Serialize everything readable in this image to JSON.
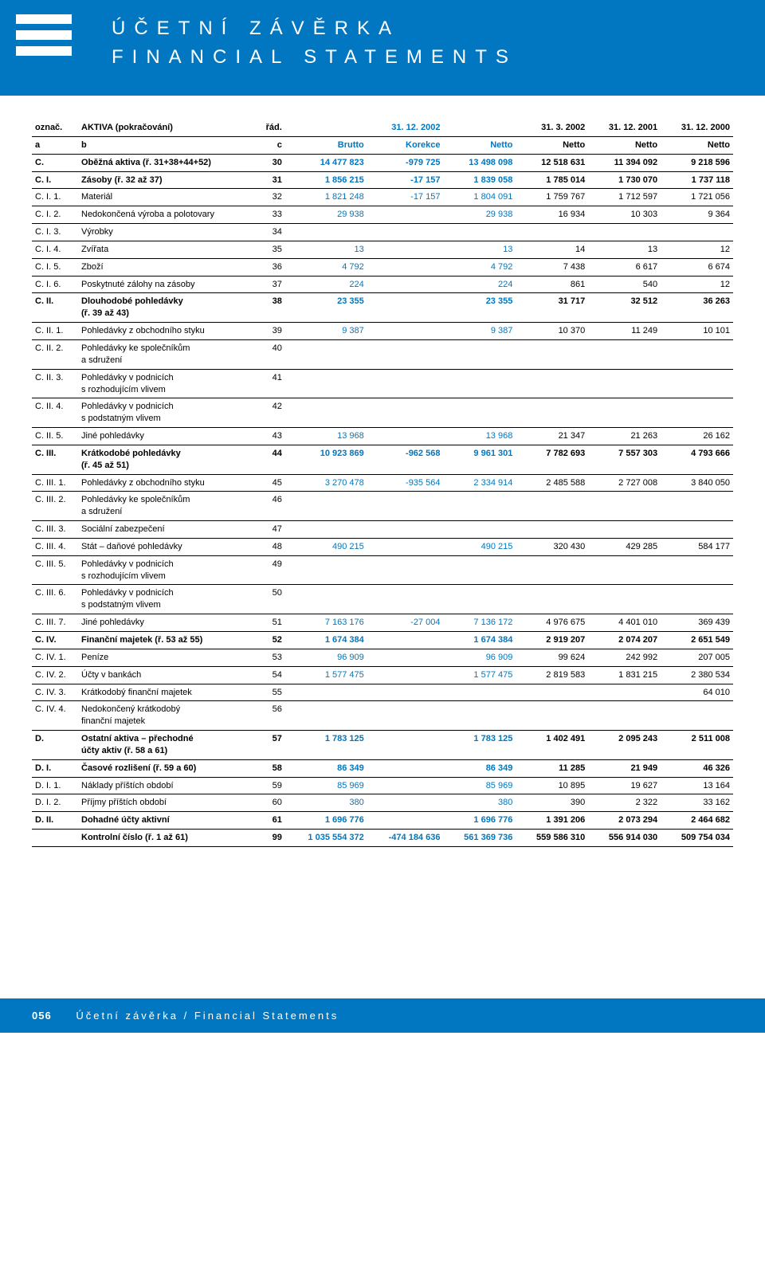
{
  "header": {
    "title1": "ÚČETNÍ ZÁVĚRKA",
    "title2": "FINANCIAL STATEMENTS"
  },
  "table": {
    "head1": [
      "označ.",
      "AKTIVA (pokračování)",
      "řád.",
      "",
      "31. 12. 2002",
      "",
      "31. 3. 2002",
      "31. 12. 2001",
      "31. 12. 2000"
    ],
    "head2": [
      "a",
      "b",
      "c",
      "Brutto",
      "Korekce",
      "Netto",
      "Netto",
      "Netto",
      "Netto"
    ],
    "rows": [
      {
        "bold": true,
        "a": "C.",
        "b": "Oběžná aktiva (ř. 31+38+44+52)",
        "c": "30",
        "v": [
          "14 477 823",
          "-979 725",
          "13 498 098",
          "12 518 631",
          "11 394 092",
          "9 218 596"
        ]
      },
      {
        "bold": true,
        "a": "C. I.",
        "b": "Zásoby (ř. 32 až 37)",
        "c": "31",
        "v": [
          "1 856 215",
          "-17 157",
          "1 839 058",
          "1 785 014",
          "1 730 070",
          "1 737 118"
        ]
      },
      {
        "a": "C. I.  1.",
        "b": "Materiál",
        "c": "32",
        "v": [
          "1 821 248",
          "-17 157",
          "1 804 091",
          "1 759 767",
          "1 712 597",
          "1 721 056"
        ]
      },
      {
        "a": "C. I.  2.",
        "b": "Nedokončená výroba a polotovary",
        "c": "33",
        "v": [
          "29 938",
          "",
          "29 938",
          "16 934",
          "10 303",
          "9 364"
        ]
      },
      {
        "a": "C. I.  3.",
        "b": "Výrobky",
        "c": "34",
        "v": [
          "",
          "",
          "",
          "",
          "",
          ""
        ]
      },
      {
        "a": "C. I.  4.",
        "b": "Zvířata",
        "c": "35",
        "v": [
          "13",
          "",
          "13",
          "14",
          "13",
          "12"
        ]
      },
      {
        "a": "C. I.  5.",
        "b": "Zboží",
        "c": "36",
        "v": [
          "4 792",
          "",
          "4 792",
          "7 438",
          "6 617",
          "6 674"
        ]
      },
      {
        "a": "C. I.  6.",
        "b": "Poskytnuté zálohy na zásoby",
        "c": "37",
        "v": [
          "224",
          "",
          "224",
          "861",
          "540",
          "12"
        ]
      },
      {
        "bold": true,
        "a": "C. II.",
        "b": "Dlouhodobé pohledávky\n(ř. 39 až 43)",
        "c": "38",
        "v": [
          "23 355",
          "",
          "23 355",
          "31 717",
          "32 512",
          "36 263"
        ]
      },
      {
        "a": "C. II. 1.",
        "b": "Pohledávky z obchodního styku",
        "c": "39",
        "v": [
          "9 387",
          "",
          "9 387",
          "10 370",
          "11 249",
          "10 101"
        ]
      },
      {
        "a": "C. II. 2.",
        "b": "Pohledávky ke společníkům\na sdružení",
        "c": "40",
        "v": [
          "",
          "",
          "",
          "",
          "",
          ""
        ]
      },
      {
        "a": "C. II. 3.",
        "b": "Pohledávky v podnicích\ns rozhodujícím vlivem",
        "c": "41",
        "v": [
          "",
          "",
          "",
          "",
          "",
          ""
        ]
      },
      {
        "a": "C. II. 4.",
        "b": "Pohledávky v podnicích\ns podstatným vlivem",
        "c": "42",
        "v": [
          "",
          "",
          "",
          "",
          "",
          ""
        ]
      },
      {
        "a": "C. II. 5.",
        "b": "Jiné pohledávky",
        "c": "43",
        "v": [
          "13 968",
          "",
          "13 968",
          "21 347",
          "21 263",
          "26 162"
        ]
      },
      {
        "bold": true,
        "a": "C. III.",
        "b": "Krátkodobé pohledávky\n(ř. 45 až 51)",
        "c": "44",
        "v": [
          "10 923 869",
          "-962 568",
          "9 961 301",
          "7 782 693",
          "7 557 303",
          "4 793 666"
        ]
      },
      {
        "a": "C. III. 1.",
        "b": "Pohledávky z obchodního styku",
        "c": "45",
        "v": [
          "3 270 478",
          "-935 564",
          "2 334 914",
          "2 485 588",
          "2 727 008",
          "3 840 050"
        ]
      },
      {
        "a": "C. III. 2.",
        "b": "Pohledávky ke společníkům\na sdružení",
        "c": "46",
        "v": [
          "",
          "",
          "",
          "",
          "",
          ""
        ]
      },
      {
        "a": "C. III. 3.",
        "b": "Sociální zabezpečení",
        "c": "47",
        "v": [
          "",
          "",
          "",
          "",
          "",
          ""
        ]
      },
      {
        "a": "C. III. 4.",
        "b": "Stát – daňové pohledávky",
        "c": "48",
        "v": [
          "490 215",
          "",
          "490 215",
          "320 430",
          "429 285",
          "584 177"
        ]
      },
      {
        "a": "C. III. 5.",
        "b": "Pohledávky v podnicích\ns rozhodujícím vlivem",
        "c": "49",
        "v": [
          "",
          "",
          "",
          "",
          "",
          ""
        ]
      },
      {
        "a": "C. III. 6.",
        "b": "Pohledávky v podnicích\ns podstatným vlivem",
        "c": "50",
        "v": [
          "",
          "",
          "",
          "",
          "",
          ""
        ]
      },
      {
        "a": "C. III. 7.",
        "b": "Jiné pohledávky",
        "c": "51",
        "v": [
          "7 163 176",
          "-27 004",
          "7 136 172",
          "4 976 675",
          "4 401 010",
          "369 439"
        ]
      },
      {
        "bold": true,
        "a": "C. IV.",
        "b": "Finanční majetek (ř. 53 až 55)",
        "c": "52",
        "v": [
          "1 674 384",
          "",
          "1 674 384",
          "2 919 207",
          "2 074 207",
          "2 651 549"
        ]
      },
      {
        "a": "C. IV. 1.",
        "b": "Peníze",
        "c": "53",
        "v": [
          "96 909",
          "",
          "96 909",
          "99 624",
          "242 992",
          "207 005"
        ]
      },
      {
        "a": "C. IV. 2.",
        "b": "Účty v bankách",
        "c": "54",
        "v": [
          "1 577 475",
          "",
          "1 577 475",
          "2 819 583",
          "1 831 215",
          "2 380 534"
        ]
      },
      {
        "a": "C. IV. 3.",
        "b": "Krátkodobý finanční majetek",
        "c": "55",
        "v": [
          "",
          "",
          "",
          "",
          "",
          "64 010"
        ]
      },
      {
        "a": "C. IV. 4.",
        "b": "Nedokončený krátkodobý\nfinanční majetek",
        "c": "56",
        "v": [
          "",
          "",
          "",
          "",
          "",
          ""
        ]
      },
      {
        "bold": true,
        "a": "D.",
        "b": "Ostatní aktiva – přechodné\núčty aktiv (ř. 58 a 61)",
        "c": "57",
        "v": [
          "1 783 125",
          "",
          "1 783 125",
          "1 402 491",
          "2 095 243",
          "2 511 008"
        ]
      },
      {
        "bold": true,
        "a": "D. I.",
        "b": "Časové rozlišení (ř. 59 a 60)",
        "c": "58",
        "v": [
          "86 349",
          "",
          "86 349",
          "11 285",
          "21 949",
          "46 326"
        ]
      },
      {
        "a": "D. I.  1.",
        "b": "Náklady příštích období",
        "c": "59",
        "v": [
          "85 969",
          "",
          "85 969",
          "10 895",
          "19 627",
          "13 164"
        ]
      },
      {
        "a": "D. I.  2.",
        "b": "Příjmy příštích období",
        "c": "60",
        "v": [
          "380",
          "",
          "380",
          "390",
          "2 322",
          "33 162"
        ]
      },
      {
        "bold": true,
        "a": "D. II.",
        "b": "Dohadné účty aktivní",
        "c": "61",
        "v": [
          "1 696 776",
          "",
          "1 696 776",
          "1 391 206",
          "2 073 294",
          "2 464 682"
        ]
      },
      {
        "bold": true,
        "a": "",
        "b": "Kontrolní číslo (ř. 1 až 61)",
        "c": "99",
        "v": [
          "1 035 554 372",
          "-474 184 636",
          "561 369 736",
          "559 586 310",
          "556 914 030",
          "509 754 034"
        ]
      }
    ]
  },
  "footer": {
    "page": "056",
    "text": "Účetní závěrka / Financial Statements"
  },
  "colors": {
    "brand": "#0077c0",
    "text": "#000000",
    "bg": "#ffffff"
  }
}
